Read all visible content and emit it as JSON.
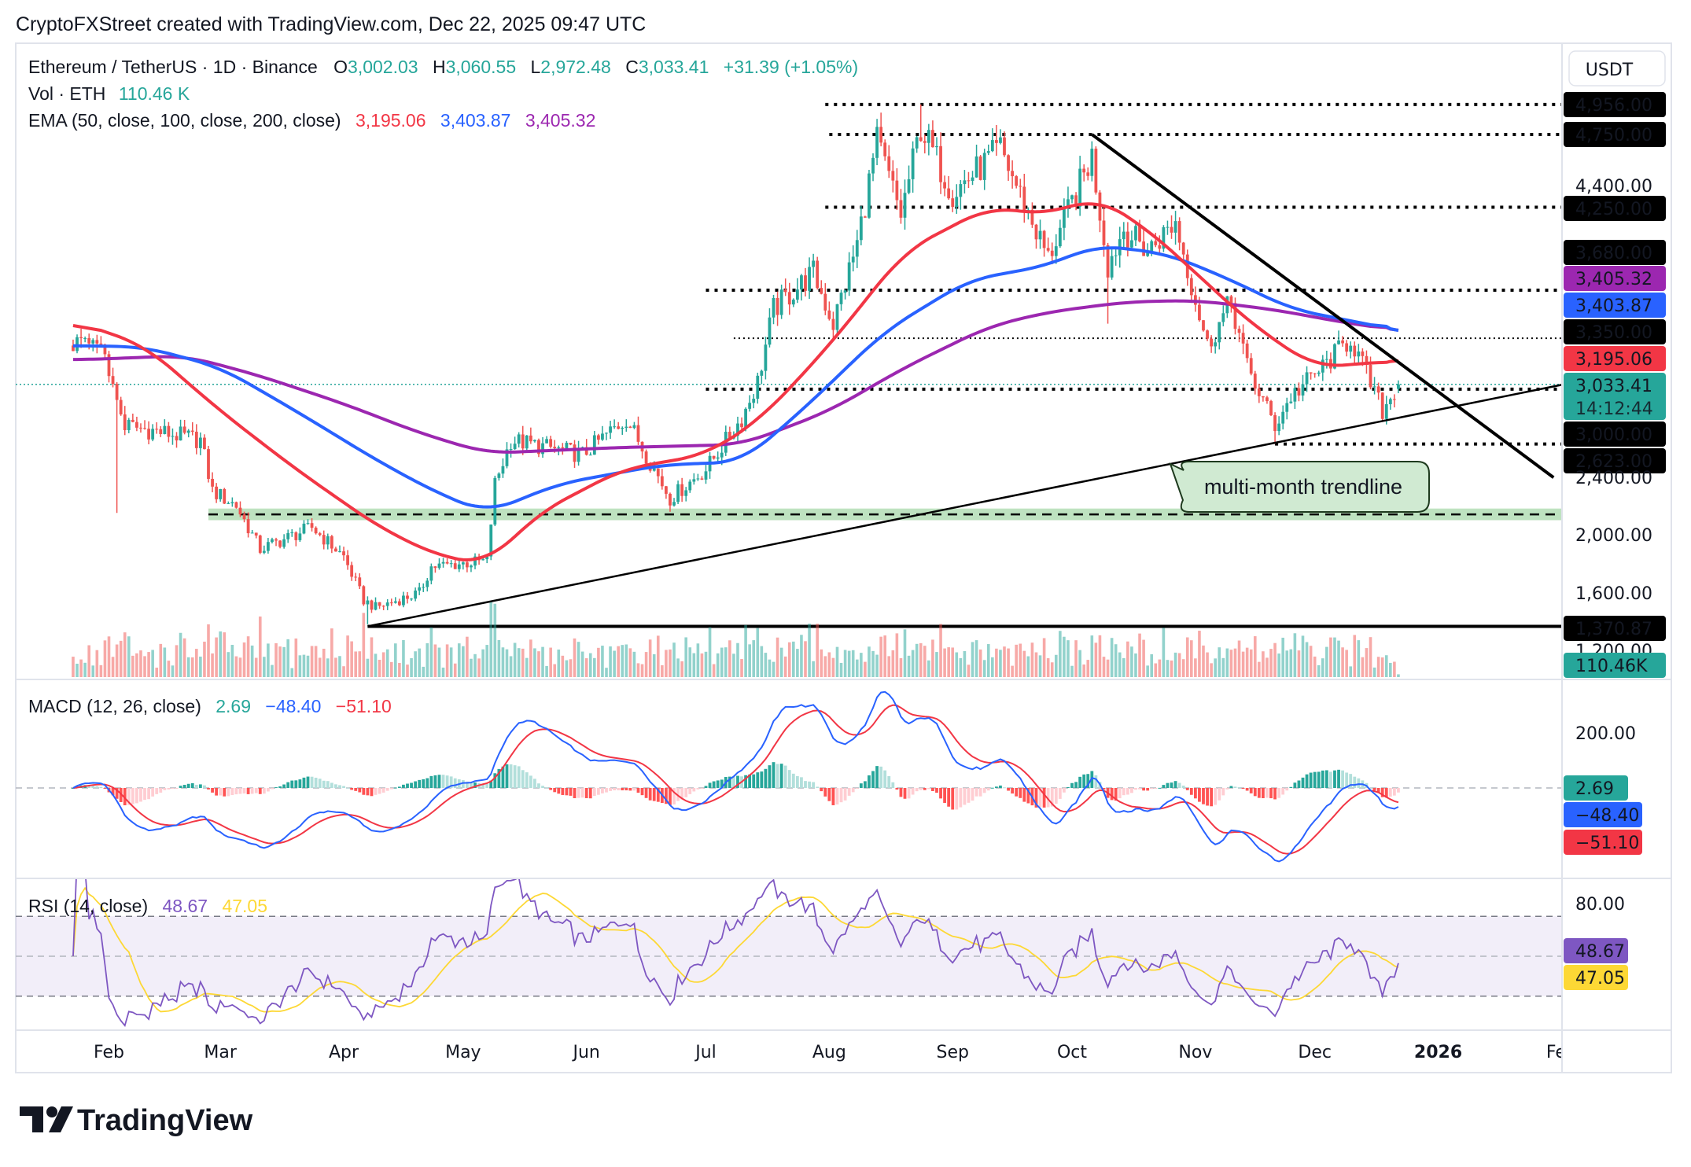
{
  "header": {
    "title": "CryptoFXStreet created with TradingView.com, Dec 22, 2025 09:47 UTC"
  },
  "legend": {
    "symbol": "Ethereum / TetherUS · 1D · Binance",
    "o_label": "O",
    "o": "3,002.03",
    "h_label": "H",
    "h": "3,060.55",
    "l_label": "L",
    "l": "2,972.48",
    "c_label": "C",
    "c": "3,033.41",
    "change": "+31.39 (+1.05%)",
    "vol_label": "Vol · ETH",
    "vol": "110.46 K",
    "ema_label": "EMA (50, close, 100, close, 200, close)",
    "ema50": "3,195.06",
    "ema100": "3,403.87",
    "ema200": "3,405.32"
  },
  "macd_legend": {
    "label": "MACD (12, 26, close)",
    "hist": "2.69",
    "macd": "−48.40",
    "signal": "−51.10"
  },
  "rsi_legend": {
    "label": "RSI (14, close)",
    "rsi": "48.67",
    "ma": "47.05"
  },
  "currency": "USDT",
  "annotation": "multi-month trendline",
  "logo": "TradingView",
  "colors": {
    "up": "#26a69a",
    "down": "#ef5350",
    "ema50": "#f23645",
    "ema100": "#2962ff",
    "ema200": "#9c27b0",
    "macd": "#2962ff",
    "signal": "#f23645",
    "rsi": "#7e57c2",
    "rsi_ma": "#fdd835",
    "zone": "#b7dfb9"
  },
  "price_axis": [
    {
      "text": "4,956.00",
      "bg": "#000000",
      "fg": "#ffffff"
    },
    {
      "text": "4,750.00",
      "bg": "#000000",
      "fg": "#ffffff"
    },
    {
      "text": "4,400.00",
      "bg": "",
      "fg": "#131722"
    },
    {
      "text": "4,250.00",
      "bg": "#000000",
      "fg": "#ffffff"
    },
    {
      "text": "3,680.00",
      "bg": "#000000",
      "fg": "#ffffff"
    },
    {
      "text": "3,405.32",
      "bg": "#9c27b0",
      "fg": "#ffffff"
    },
    {
      "text": "3,403.87",
      "bg": "#2962ff",
      "fg": "#ffffff"
    },
    {
      "text": "3,350.00",
      "bg": "#000000",
      "fg": "#ffffff"
    },
    {
      "text": "3,195.06",
      "bg": "#f23645",
      "fg": "#ffffff"
    },
    {
      "text": "3,033.41",
      "sub": "14:12:44",
      "bg": "#26a69a",
      "fg": "#ffffff"
    },
    {
      "text": "3,000.00",
      "bg": "#000000",
      "fg": "#ffffff"
    },
    {
      "text": "2,623.00",
      "bg": "#000000",
      "fg": "#ffffff"
    },
    {
      "text": "2,400.00",
      "bg": "",
      "fg": "#131722"
    },
    {
      "text": "2,000.00",
      "bg": "",
      "fg": "#131722"
    },
    {
      "text": "1,600.00",
      "bg": "",
      "fg": "#131722"
    },
    {
      "text": "1,370.87",
      "bg": "#000000",
      "fg": "#ffffff"
    },
    {
      "text": "1,200.00",
      "bg": "",
      "fg": "#131722"
    },
    {
      "text": "110.46K",
      "bg": "#26a69a",
      "fg": "#ffffff"
    }
  ],
  "macd_axis": [
    {
      "text": "200.00",
      "bg": "",
      "fg": "#131722"
    },
    {
      "text": "2.69",
      "bg": "#26a69a",
      "fg": "#ffffff"
    },
    {
      "text": "−48.40",
      "bg": "#2962ff",
      "fg": "#ffffff"
    },
    {
      "text": "−51.10",
      "bg": "#f23645",
      "fg": "#ffffff"
    }
  ],
  "rsi_axis": [
    {
      "text": "80.00",
      "bg": "",
      "fg": "#131722"
    },
    {
      "text": "48.67",
      "bg": "#7e57c2",
      "fg": "#ffffff"
    },
    {
      "text": "47.05",
      "bg": "#fdd835",
      "fg": "#131722"
    }
  ],
  "chart_data": {
    "type": "candlestick",
    "symbol": "ETHUSDT",
    "interval": "1D",
    "price_scale": "linear",
    "ylim": [
      1150,
      5050
    ],
    "x_ticks": [
      {
        "label": "Feb",
        "date": "2025-02-01"
      },
      {
        "label": "Mar",
        "date": "2025-03-01"
      },
      {
        "label": "Apr",
        "date": "2025-04-01"
      },
      {
        "label": "May",
        "date": "2025-05-01"
      },
      {
        "label": "Jun",
        "date": "2025-06-01"
      },
      {
        "label": "Jul",
        "date": "2025-07-01"
      },
      {
        "label": "Aug",
        "date": "2025-08-01"
      },
      {
        "label": "Sep",
        "date": "2025-09-01"
      },
      {
        "label": "Oct",
        "date": "2025-10-01"
      },
      {
        "label": "Nov",
        "date": "2025-11-01"
      },
      {
        "label": "Dec",
        "date": "2025-12-01"
      },
      {
        "label": "2026",
        "date": "2026-01-01",
        "bold": true
      },
      {
        "label": "Feb",
        "date": "2026-02-01"
      }
    ],
    "close_path": [
      [
        "2025-01-23",
        3300
      ],
      [
        "2025-01-31",
        3280
      ],
      [
        "2025-02-02",
        3000
      ],
      [
        "2025-02-05",
        2750
      ],
      [
        "2025-02-15",
        2700
      ],
      [
        "2025-02-24",
        2650
      ],
      [
        "2025-02-27",
        2300
      ],
      [
        "2025-03-05",
        2200
      ],
      [
        "2025-03-11",
        1900
      ],
      [
        "2025-03-24",
        2050
      ],
      [
        "2025-04-01",
        1850
      ],
      [
        "2025-04-06",
        1550
      ],
      [
        "2025-04-09",
        1500
      ],
      [
        "2025-04-20",
        1600
      ],
      [
        "2025-04-23",
        1780
      ],
      [
        "2025-05-07",
        1820
      ],
      [
        "2025-05-09",
        2350
      ],
      [
        "2025-05-13",
        2650
      ],
      [
        "2025-05-31",
        2550
      ],
      [
        "2025-06-11",
        2800
      ],
      [
        "2025-06-22",
        2250
      ],
      [
        "2025-07-01",
        2450
      ],
      [
        "2025-07-10",
        2800
      ],
      [
        "2025-07-14",
        3050
      ],
      [
        "2025-07-18",
        3550
      ],
      [
        "2025-07-28",
        3800
      ],
      [
        "2025-08-02",
        3450
      ],
      [
        "2025-08-08",
        4000
      ],
      [
        "2025-08-13",
        4700
      ],
      [
        "2025-08-19",
        4200
      ],
      [
        "2025-08-24",
        4800
      ],
      [
        "2025-09-01",
        4350
      ],
      [
        "2025-09-13",
        4650
      ],
      [
        "2025-09-25",
        3900
      ],
      [
        "2025-10-06",
        4600
      ],
      [
        "2025-10-10",
        3850
      ],
      [
        "2025-10-14",
        4100
      ],
      [
        "2025-10-20",
        3950
      ],
      [
        "2025-10-27",
        4150
      ],
      [
        "2025-11-04",
        3300
      ],
      [
        "2025-11-10",
        3600
      ],
      [
        "2025-11-14",
        3150
      ],
      [
        "2025-11-21",
        2750
      ],
      [
        "2025-11-25",
        2950
      ],
      [
        "2025-12-03",
        3150
      ],
      [
        "2025-12-10",
        3350
      ],
      [
        "2025-12-18",
        2850
      ],
      [
        "2025-12-22",
        3033.41
      ]
    ],
    "extremes": [
      {
        "date": "2025-02-03",
        "low": 2150
      },
      {
        "date": "2025-04-07",
        "low": 1385
      },
      {
        "date": "2025-08-24",
        "high": 4956
      },
      {
        "date": "2025-10-10",
        "low": 3450
      },
      {
        "date": "2025-11-21",
        "low": 2623
      }
    ],
    "last_candle": {
      "date": "2025-12-22",
      "open": 3002.03,
      "high": 3060.55,
      "low": 2972.48,
      "close": 3033.41,
      "volume": "110.46K"
    },
    "ema50": [
      [
        "2025-01-23",
        3470
      ],
      [
        "2025-02-10",
        3300
      ],
      [
        "2025-03-01",
        2850
      ],
      [
        "2025-03-20",
        2450
      ],
      [
        "2025-04-10",
        2050
      ],
      [
        "2025-04-25",
        1850
      ],
      [
        "2025-05-07",
        1800
      ],
      [
        "2025-05-20",
        2150
      ],
      [
        "2025-06-10",
        2450
      ],
      [
        "2025-07-01",
        2550
      ],
      [
        "2025-07-15",
        2800
      ],
      [
        "2025-08-01",
        3300
      ],
      [
        "2025-08-20",
        3950
      ],
      [
        "2025-09-10",
        4250
      ],
      [
        "2025-09-25",
        4200
      ],
      [
        "2025-10-07",
        4320
      ],
      [
        "2025-10-20",
        4100
      ],
      [
        "2025-11-01",
        3800
      ],
      [
        "2025-11-15",
        3450
      ],
      [
        "2025-12-01",
        3150
      ],
      [
        "2025-12-22",
        3195.06
      ]
    ],
    "ema100": [
      [
        "2025-01-23",
        3300
      ],
      [
        "2025-02-10",
        3290
      ],
      [
        "2025-03-01",
        3150
      ],
      [
        "2025-03-20",
        2850
      ],
      [
        "2025-04-10",
        2500
      ],
      [
        "2025-04-25",
        2280
      ],
      [
        "2025-05-07",
        2150
      ],
      [
        "2025-05-25",
        2350
      ],
      [
        "2025-06-20",
        2480
      ],
      [
        "2025-07-10",
        2500
      ],
      [
        "2025-07-25",
        2850
      ],
      [
        "2025-08-15",
        3400
      ],
      [
        "2025-09-05",
        3750
      ],
      [
        "2025-09-25",
        3850
      ],
      [
        "2025-10-07",
        3990
      ],
      [
        "2025-10-25",
        3930
      ],
      [
        "2025-11-10",
        3750
      ],
      [
        "2025-11-25",
        3550
      ],
      [
        "2025-12-10",
        3470
      ],
      [
        "2025-12-22",
        3403.87
      ]
    ],
    "ema200": [
      [
        "2025-01-23",
        3200
      ],
      [
        "2025-02-20",
        3230
      ],
      [
        "2025-03-10",
        3100
      ],
      [
        "2025-04-01",
        2900
      ],
      [
        "2025-04-20",
        2700
      ],
      [
        "2025-05-07",
        2560
      ],
      [
        "2025-06-10",
        2600
      ],
      [
        "2025-07-10",
        2620
      ],
      [
        "2025-08-01",
        2850
      ],
      [
        "2025-08-20",
        3150
      ],
      [
        "2025-09-10",
        3430
      ],
      [
        "2025-09-25",
        3530
      ],
      [
        "2025-10-15",
        3600
      ],
      [
        "2025-11-01",
        3610
      ],
      [
        "2025-11-20",
        3550
      ],
      [
        "2025-12-10",
        3450
      ],
      [
        "2025-12-22",
        3405.32
      ]
    ],
    "levels": [
      {
        "price": 4956,
        "from": "2025-07-31",
        "style": "dotted-bold"
      },
      {
        "price": 4750,
        "from": "2025-08-01",
        "style": "dotted-bold"
      },
      {
        "price": 4250,
        "from": "2025-07-31",
        "style": "dotted-bold"
      },
      {
        "price": 3680,
        "from": "2025-07-01",
        "style": "dotted-bold"
      },
      {
        "price": 3350,
        "from": "2025-07-08",
        "style": "dotted-thin"
      },
      {
        "price": 3000,
        "from": "2025-07-01",
        "style": "dotted-bold"
      },
      {
        "price": 2623,
        "from": "2025-11-21",
        "style": "dotted-bold"
      },
      {
        "price": 1370.87,
        "from": "2025-04-07",
        "style": "solid-bold"
      }
    ],
    "support_zone": {
      "from": "2025-02-26",
      "low": 2100,
      "high": 2180,
      "mid": 2140
    },
    "trendlines": [
      {
        "name": "ascending",
        "from": [
          "2025-04-07",
          1370.87
        ],
        "to": [
          "2026-02-01",
          3030
        ]
      },
      {
        "name": "descending",
        "from": [
          "2025-10-06",
          4750
        ],
        "to": [
          "2026-01-30",
          2393
        ]
      }
    ],
    "macd": {
      "params": [
        12,
        26,
        9
      ],
      "hist": 2.69,
      "macd": -48.4,
      "signal": -51.1,
      "ticks": [
        200
      ]
    },
    "rsi": {
      "period": 14,
      "value": 48.67,
      "ma": 47.05,
      "bands": [
        30,
        50,
        70
      ],
      "ticks": [
        80
      ]
    }
  }
}
